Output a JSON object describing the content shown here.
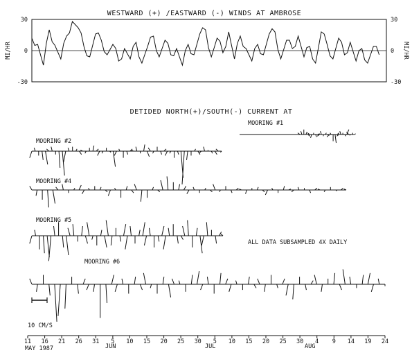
{
  "chart_data": [
    {
      "type": "line",
      "title": "WESTWARD (+) /EASTWARD (-) WINDS AT AMBROSE",
      "ylabel_left": "MI/HR",
      "ylabel_right": "MI/HR",
      "ylim": [
        -30,
        30
      ],
      "yticks": [
        "30",
        "0",
        "-30"
      ],
      "series": [
        {
          "x_day": [
            0,
            2,
            4,
            6,
            8,
            10,
            12,
            14,
            16,
            18,
            20,
            22,
            24,
            26,
            28,
            30,
            32,
            34,
            36,
            38,
            40,
            42,
            44,
            46,
            48,
            50,
            52,
            54,
            56,
            58,
            60,
            62,
            64,
            66,
            68,
            70,
            72,
            74,
            76,
            78,
            80,
            82,
            84,
            86,
            88,
            90,
            92,
            94,
            96,
            98,
            100,
            102,
            104,
            106,
            108,
            110,
            112,
            114,
            116,
            118,
            120
          ],
          "values": [
            12,
            6,
            -14,
            20,
            5,
            -8,
            14,
            28,
            22,
            4,
            -6,
            16,
            10,
            -4,
            6,
            -10,
            2,
            -8,
            8,
            -12,
            4,
            14,
            -6,
            10,
            -4,
            2,
            -14,
            6,
            -4,
            16,
            20,
            -6,
            12,
            -2,
            18,
            -8,
            14,
            2,
            -10,
            6,
            -4,
            16,
            18,
            -8,
            10,
            2,
            14,
            -6,
            4,
            -12,
            18,
            6,
            -8,
            12,
            -4,
            8,
            -10,
            2,
            -12,
            4,
            -4
          ]
        }
      ]
    },
    {
      "type": "stick",
      "title": "DETIDED NORTH(+)/SOUTH(-) CURRENT AT",
      "annotation": "ALL DATA SUBSAMPLED 4X DAILY",
      "scale_label": "10 CM/S",
      "x_ticks": [
        "11",
        "16",
        "21",
        "26",
        "31",
        "5",
        "10",
        "15",
        "20",
        "25",
        "30",
        "5",
        "10",
        "15",
        "20",
        "25",
        "30",
        "4",
        "9",
        "14",
        "19",
        "24"
      ],
      "month_labels": [
        "MAY 1987",
        "JUN",
        "JUL",
        "AUG"
      ],
      "moorings": [
        {
          "name": "MOORING #1",
          "x_day": [
            62,
            64,
            66,
            68,
            70,
            72,
            74,
            76,
            78,
            80,
            82,
            84,
            86,
            88,
            90,
            92,
            94,
            96,
            98,
            100,
            102,
            104,
            106,
            108,
            110,
            112,
            114,
            116,
            118
          ],
          "v_cm": [
            2,
            4,
            6,
            3,
            -2,
            2,
            -4,
            2,
            -3,
            1,
            -2,
            4,
            -2,
            2,
            -1,
            -3,
            2,
            -8,
            -10,
            2,
            -2,
            4,
            2,
            -2,
            6,
            3,
            -1,
            2,
            1
          ]
        },
        {
          "name": "MOORING #2",
          "x_day": [
            0,
            1,
            2,
            3,
            4,
            5,
            6,
            7,
            8,
            9,
            10,
            11,
            12,
            13,
            14,
            15,
            16,
            17,
            18,
            19,
            20,
            21,
            22,
            23,
            24,
            25,
            26,
            27,
            28,
            29,
            30,
            31,
            32,
            33,
            34,
            35,
            36,
            37,
            38,
            39,
            40,
            41,
            42,
            43,
            44,
            45,
            46,
            47,
            48,
            49,
            50,
            51,
            52,
            53,
            54,
            55,
            56
          ],
          "v_cm": [
            -6,
            3,
            -4,
            -8,
            -12,
            2,
            4,
            -3,
            -15,
            -22,
            -10,
            3,
            4,
            2,
            -3,
            1,
            -2,
            3,
            5,
            2,
            -4,
            -2,
            3,
            -1,
            -14,
            -4,
            2,
            -6,
            -3,
            2,
            1,
            4,
            -2,
            6,
            -5,
            3,
            -2,
            4,
            -3,
            2,
            -4,
            -2,
            -6,
            -3,
            -24,
            -30,
            -8,
            -4,
            2,
            -3,
            -2,
            4,
            1,
            -2,
            -3,
            2,
            -1
          ]
        },
        {
          "name": "MOORING #4",
          "x_day": [
            0,
            2,
            4,
            6,
            8,
            10,
            12,
            14,
            16,
            18,
            20,
            22,
            24,
            26,
            28,
            30,
            32,
            34,
            36,
            38,
            40,
            42,
            44,
            46,
            48,
            50,
            52,
            54,
            56,
            58,
            60,
            62,
            64,
            66,
            68,
            70,
            72,
            74,
            76,
            78,
            80,
            82,
            84,
            86,
            88,
            90,
            92,
            94,
            96,
            98,
            100,
            102,
            104,
            106,
            108,
            110,
            112,
            114,
            116,
            118,
            120
          ],
          "v_cm": [
            4,
            -6,
            -10,
            -18,
            -14,
            3,
            6,
            -3,
            2,
            5,
            -4,
            2,
            4,
            3,
            -2,
            -6,
            2,
            -8,
            4,
            -3,
            6,
            -12,
            -8,
            3,
            -2,
            10,
            14,
            8,
            6,
            4,
            -4,
            3,
            -3,
            2,
            -2,
            6,
            -2,
            4,
            -3,
            2,
            1,
            -4,
            2,
            3,
            -2,
            -5,
            2,
            -3,
            4,
            1,
            -2,
            3,
            2,
            -3,
            2,
            1,
            -2,
            3,
            -1,
            2,
            1
          ]
        },
        {
          "name": "MOORING #5",
          "x_day": [
            0,
            1,
            2,
            3,
            4,
            5,
            6,
            7,
            8,
            9,
            10,
            11,
            12,
            13,
            14,
            15,
            16,
            17,
            18,
            19,
            20,
            21,
            22,
            23,
            24,
            25,
            26,
            27,
            28,
            29,
            30,
            31,
            32,
            33,
            34,
            35,
            36,
            37,
            38,
            39,
            40,
            41,
            42,
            43,
            44,
            45,
            46,
            47,
            48,
            49,
            50
          ],
          "v_cm": [
            -8,
            6,
            -14,
            -18,
            -22,
            -26,
            10,
            14,
            -12,
            -20,
            8,
            12,
            -6,
            10,
            -8,
            14,
            -4,
            -10,
            6,
            -12,
            16,
            -10,
            8,
            -6,
            12,
            -14,
            10,
            -8,
            6,
            14,
            -10,
            8,
            -12,
            -6,
            10,
            -14,
            8,
            12,
            -8,
            -4,
            10,
            16,
            -12,
            8,
            -18,
            -10,
            14,
            6,
            -8,
            4,
            2
          ]
        },
        {
          "name": "MOORING #6",
          "x_day": [
            0,
            2,
            4,
            6,
            8,
            10,
            12,
            14,
            16,
            18,
            20,
            22,
            24,
            26,
            28,
            30,
            32,
            34,
            36,
            38,
            40,
            42,
            44,
            46,
            48,
            50,
            52,
            54,
            56,
            58,
            60,
            62,
            64,
            66,
            68,
            70,
            72,
            74,
            76,
            78,
            80,
            82,
            84,
            86,
            88,
            90,
            92,
            94,
            96,
            98,
            100,
            102,
            104,
            106,
            108,
            110,
            112,
            114,
            116,
            118,
            120,
            122,
            124
          ],
          "v_cm": [
            6,
            -8,
            10,
            -12,
            -40,
            -34,
            -26,
            8,
            -10,
            6,
            -6,
            -8,
            -36,
            -20,
            10,
            -8,
            6,
            -10,
            8,
            -6,
            12,
            -4,
            -10,
            8,
            -14,
            6,
            4,
            -8,
            10,
            14,
            -6,
            8,
            -10,
            12,
            6,
            -8,
            4,
            -6,
            8,
            -4,
            6,
            -8,
            10,
            -4,
            6,
            -12,
            -16,
            8,
            -6,
            4,
            10,
            -8,
            6,
            12,
            -6,
            16,
            8,
            -4,
            10,
            12,
            -8,
            6,
            -2
          ]
        }
      ]
    }
  ]
}
